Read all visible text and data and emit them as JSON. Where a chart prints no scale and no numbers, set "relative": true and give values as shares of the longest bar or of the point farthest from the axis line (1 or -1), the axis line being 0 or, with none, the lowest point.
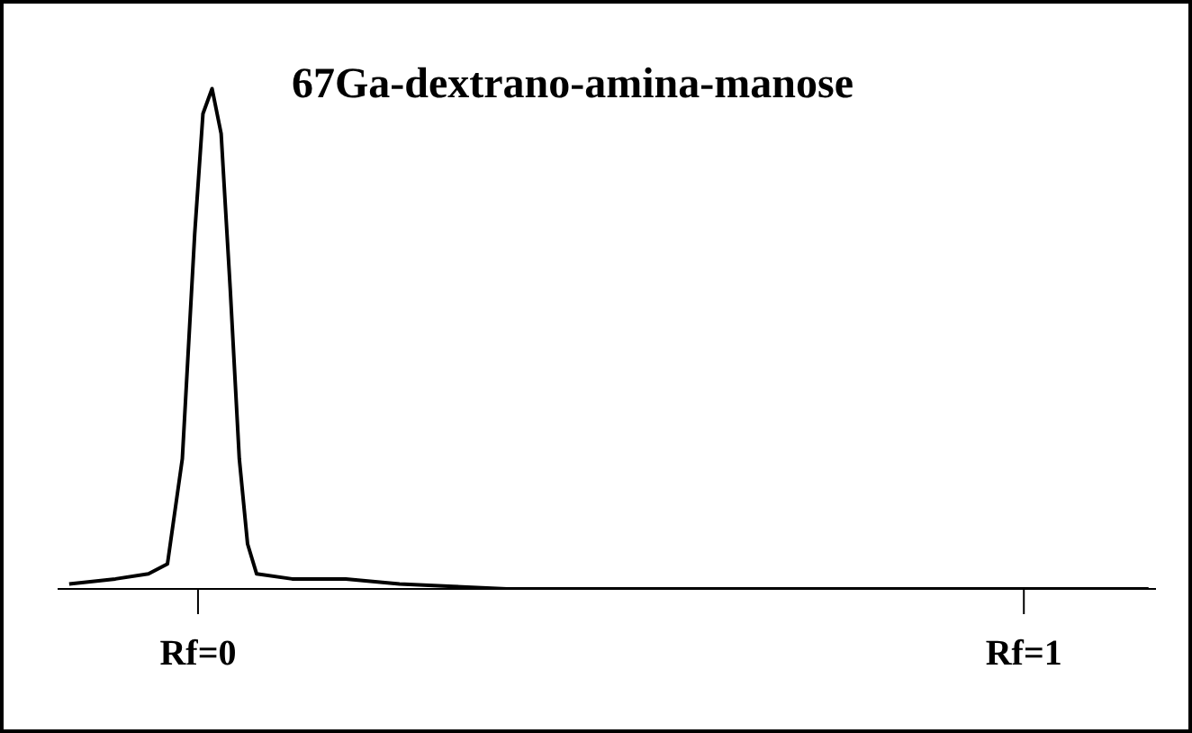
{
  "chart_data": {
    "type": "line",
    "title": "67Ga-dextrano-amina-manose",
    "relative": true,
    "xlim": [
      -0.17,
      1.16
    ],
    "xticks": [
      {
        "value": 0,
        "label": "Rf=0"
      },
      {
        "value": 1,
        "label": "Rf=1"
      }
    ],
    "marker": "none",
    "grid": false,
    "legend": false,
    "x": [
      -0.156,
      -0.1,
      -0.06,
      -0.037,
      -0.019,
      -0.004,
      0.006,
      0.017,
      0.028,
      0.039,
      0.05,
      0.06,
      0.071,
      0.114,
      0.179,
      0.244,
      0.309,
      0.374,
      0.611,
      1.0,
      1.151
    ],
    "series": [
      {
        "color": "#000000",
        "values": [
          0.01,
          0.02,
          0.03,
          0.05,
          0.26,
          0.71,
          0.95,
          1,
          0.91,
          0.6,
          0.26,
          0.09,
          0.03,
          0.02,
          0.02,
          0.01,
          0.005,
          0,
          0,
          0,
          0
        ]
      }
    ]
  }
}
